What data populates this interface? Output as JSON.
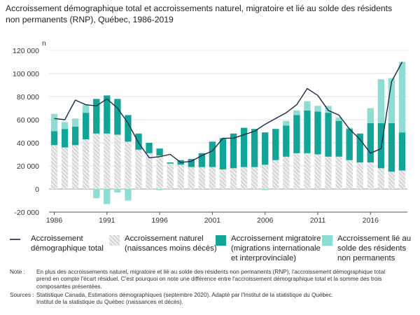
{
  "title_line1": "Accroissement démographique total et accroissements naturel, migratoire et lié au solde des résidents",
  "title_line2": "non permanents (RNP), Québec, 1986-2019",
  "chart_data": {
    "type": "bar",
    "unit_label": "n",
    "ylim": [
      -20000,
      120000
    ],
    "yticks": [
      -20000,
      0,
      20000,
      40000,
      60000,
      80000,
      100000,
      120000
    ],
    "ytick_labels": [
      "-20 000",
      "0",
      "20 000",
      "40 000",
      "60 000",
      "80 000",
      "100 000",
      "120 000"
    ],
    "xtick_labels": [
      "1986",
      "1991",
      "1996",
      "2001",
      "2006",
      "2011",
      "2016"
    ],
    "years": [
      1986,
      1987,
      1988,
      1989,
      1990,
      1991,
      1992,
      1993,
      1994,
      1995,
      1996,
      1997,
      1998,
      1999,
      2000,
      2001,
      2002,
      2003,
      2004,
      2005,
      2006,
      2007,
      2008,
      2009,
      2010,
      2011,
      2012,
      2013,
      2014,
      2015,
      2016,
      2017,
      2018,
      2019
    ],
    "grid": true,
    "colors": {
      "naturel": "#d3d3d3",
      "migratoire": "#12a597",
      "rnp": "#8fdcd3",
      "total": "#1b2a4a"
    },
    "series": [
      {
        "name": "Accroissement naturel (naissances moins décès)",
        "values": [
          38000,
          36000,
          38000,
          43000,
          48000,
          48000,
          47000,
          41000,
          34000,
          31000,
          29000,
          22000,
          21000,
          19000,
          19000,
          19000,
          17000,
          18000,
          19000,
          19000,
          21000,
          25000,
          28000,
          31000,
          31000,
          30000,
          28000,
          28000,
          25000,
          23000,
          23000,
          18000,
          15000,
          16000
        ]
      },
      {
        "name": "Accroissement migratoire (migrations internationale et interprovinciale)",
        "values": [
          12000,
          16000,
          16000,
          23000,
          30000,
          33000,
          31000,
          23000,
          14000,
          9000,
          6000,
          1000,
          4000,
          7000,
          12000,
          22000,
          27000,
          30000,
          34000,
          33000,
          28000,
          27000,
          27000,
          33000,
          37000,
          37000,
          38000,
          31000,
          27000,
          25000,
          34000,
          39000,
          42000,
          33000
        ]
      },
      {
        "name": "Accroissement lié au solde des résidents non permanents",
        "values": [
          15000,
          6000,
          7000,
          7000,
          -8000,
          -13000,
          -3000,
          -10000,
          0,
          0,
          -1000,
          0,
          0,
          0,
          0,
          0,
          0,
          0,
          0,
          0,
          -1000,
          0,
          4000,
          4000,
          8000,
          5000,
          6000,
          3000,
          1000,
          0,
          13000,
          38000,
          39000,
          61000
        ]
      },
      {
        "name": "Accroissement démographique total",
        "values": [
          61000,
          60000,
          77000,
          73000,
          72000,
          78000,
          70000,
          57000,
          40000,
          27000,
          28000,
          30000,
          23000,
          24000,
          29000,
          33000,
          44000,
          44000,
          47000,
          50000,
          56000,
          61000,
          66000,
          73000,
          87000,
          81000,
          68000,
          64000,
          52000,
          43000,
          31000,
          35000,
          93000,
          110000
        ]
      }
    ]
  },
  "legend": {
    "total_line1": "Accroissement",
    "total_line2": "démographique total",
    "naturel_line1": "Accroissement naturel",
    "naturel_line2": "(naissances moins décès)",
    "migratoire_line1": "Accroissement migratoire",
    "migratoire_line2": "(migrations internationale",
    "migratoire_line3": "et interprovinciale)",
    "rnp_line1": "Accroissement lié au",
    "rnp_line2": "solde des résidents",
    "rnp_line3": "non permanents"
  },
  "notes": {
    "note_label": "Note :",
    "note_line1": "En plus des accroissements naturel, migratoire et lié au solde des résidents non permanents (RNP), l'accroissement démographique total",
    "note_line2": "prend en compte l'écart résiduel. C'est pourquoi on note une différence entre l'accroissement démographique total et la somme des trois",
    "note_line3": "composantes présentées.",
    "sources_label": "Sources :",
    "sources_line1": "Statistique Canada, Estimations démographiques (septembre 2020). Adapté par l'Institut de la statistique du Québec.",
    "sources_line2": "Institut de la statistique du Québec (naissances et décès)."
  }
}
